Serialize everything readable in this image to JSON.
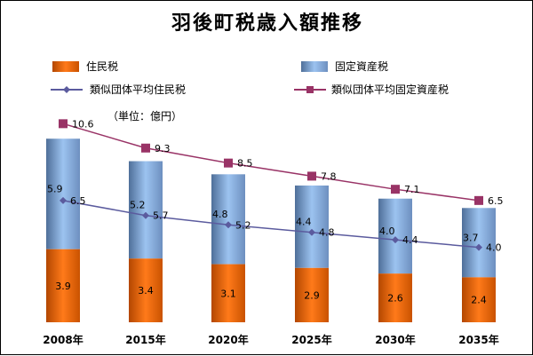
{
  "chart_data": {
    "type": "bar",
    "title": "羽後町税歳入額推移",
    "unit_label": "（単位：億円）",
    "categories": [
      "2008年",
      "2015年",
      "2020年",
      "2025年",
      "2030年",
      "2035年"
    ],
    "series": [
      {
        "name": "住民税",
        "kind": "bar-stack",
        "color": "#e46c0a",
        "values": [
          3.9,
          3.4,
          3.1,
          2.9,
          2.6,
          2.4
        ]
      },
      {
        "name": "固定資産税",
        "kind": "bar-stack",
        "color": "#8eb4e3",
        "values": [
          5.9,
          5.2,
          4.8,
          4.4,
          4.0,
          3.7
        ]
      },
      {
        "name": "類似団体平均住民税",
        "kind": "line",
        "color": "#5b5b9e",
        "marker": "diamond",
        "values": [
          6.5,
          5.7,
          5.2,
          4.8,
          4.4,
          4.0
        ]
      },
      {
        "name": "類似団体平均固定資産税",
        "kind": "line",
        "color": "#993366",
        "marker": "square",
        "values": [
          10.6,
          9.3,
          8.5,
          7.8,
          7.1,
          6.5
        ]
      }
    ],
    "legend_position": "top",
    "grid": false
  }
}
